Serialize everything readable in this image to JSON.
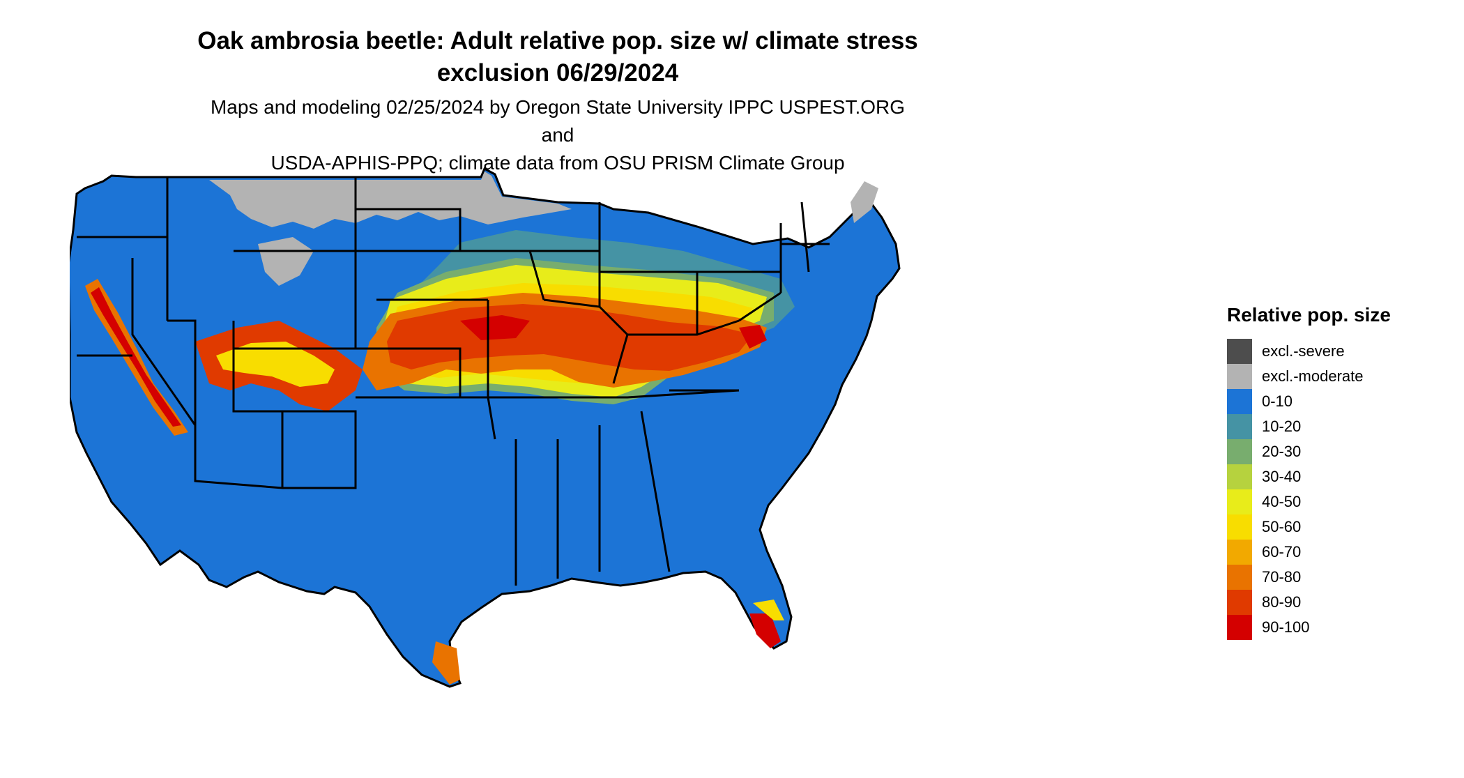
{
  "title_line1": "Oak ambrosia beetle: Adult relative pop. size w/ climate stress",
  "title_line2": "exclusion 06/29/2024",
  "subtitle_line1": "Maps and modeling 02/25/2024 by Oregon State University IPPC USPEST.ORG and",
  "subtitle_line2": "USDA-APHIS-PPQ; climate data from OSU PRISM Climate Group",
  "legend": {
    "title": "Relative pop. size",
    "items": [
      {
        "label": "excl.-severe",
        "color": "#4d4d4d"
      },
      {
        "label": "excl.-moderate",
        "color": "#b3b3b3"
      },
      {
        "label": "0-10",
        "color": "#1c74d6"
      },
      {
        "label": "10-20",
        "color": "#4593a4"
      },
      {
        "label": "20-30",
        "color": "#78ad6e"
      },
      {
        "label": "30-40",
        "color": "#b6d23e"
      },
      {
        "label": "40-50",
        "color": "#e8ec1a"
      },
      {
        "label": "50-60",
        "color": "#f8dd00"
      },
      {
        "label": "60-70",
        "color": "#f2a900"
      },
      {
        "label": "70-80",
        "color": "#e97300"
      },
      {
        "label": "80-90",
        "color": "#e03a00"
      },
      {
        "label": "90-100",
        "color": "#d40000"
      }
    ]
  }
}
